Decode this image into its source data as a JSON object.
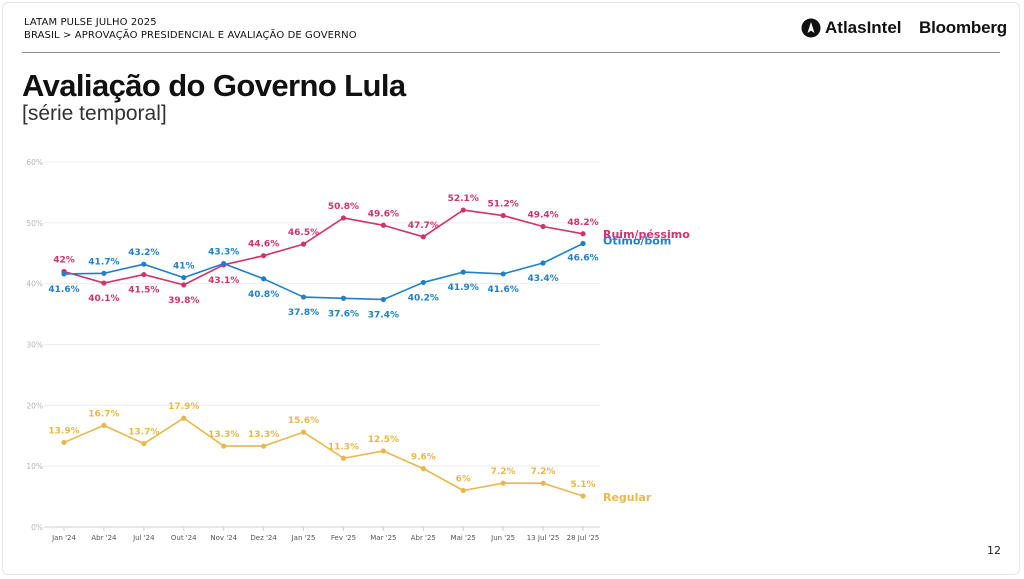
{
  "header": {
    "line1": "LATAM PULSE JULHO 2025",
    "line2": "BRASIL > APROVAÇÃO PRESIDENCIAL E AVALIAÇÃO DE GOVERNO",
    "brand_atlas": "AtlasIntel",
    "brand_bloomberg": "Bloomberg"
  },
  "title": "Avaliação do Governo Lula",
  "subtitle": "[série temporal]",
  "page_number": "12",
  "chart_data": {
    "type": "line",
    "categories": [
      "Jan '24",
      "Abr '24",
      "Jul '24",
      "Out '24",
      "Nov '24",
      "Dez '24",
      "Jan '25",
      "Fev '25",
      "Mar '25",
      "Abr '25",
      "Mai '25",
      "Jun '25",
      "13 Jul '25",
      "28 Jul '25"
    ],
    "ylim": [
      0,
      60
    ],
    "yticks": [
      0,
      10,
      20,
      30,
      40,
      50,
      60
    ],
    "ytick_labels": [
      "0%",
      "10%",
      "20%",
      "30%",
      "40%",
      "50%",
      "60%"
    ],
    "grid": true,
    "series": [
      {
        "name": "Ruim/péssimo",
        "color": "#d0336b",
        "values": [
          42,
          40.1,
          41.5,
          39.8,
          43.1,
          44.6,
          46.5,
          50.8,
          49.6,
          47.7,
          52.1,
          51.2,
          49.4,
          48.2
        ],
        "labels": [
          "42%",
          "40.1%",
          "41.5%",
          "39.8%",
          "43.1%",
          "44.6%",
          "46.5%",
          "50.8%",
          "49.6%",
          "47.7%",
          "52.1%",
          "51.2%",
          "49.4%",
          "48.2%"
        ]
      },
      {
        "name": "Ótimo/bom",
        "color": "#1f7fcc",
        "values": [
          41.6,
          41.7,
          43.2,
          41,
          43.3,
          40.8,
          37.8,
          37.6,
          37.4,
          40.2,
          41.9,
          41.6,
          43.4,
          46.6
        ],
        "labels": [
          "41.6%",
          "41.7%",
          "43.2%",
          "41%",
          "43.3%",
          "40.8%",
          "37.8%",
          "37.6%",
          "37.4%",
          "40.2%",
          "41.9%",
          "41.6%",
          "43.4%",
          "46.6%"
        ]
      },
      {
        "name": "Regular",
        "color": "#e8b84a",
        "values": [
          13.9,
          16.7,
          13.7,
          17.9,
          13.3,
          13.3,
          15.6,
          11.3,
          12.5,
          9.6,
          6,
          7.2,
          7.2,
          5.1
        ],
        "labels": [
          "13.9%",
          "16.7%",
          "13.7%",
          "17.9%",
          "13.3%",
          "13.3%",
          "15.6%",
          "11.3%",
          "12.5%",
          "9.6%",
          "6%",
          "7.2%",
          "7.2%",
          "5.1%"
        ]
      }
    ]
  }
}
